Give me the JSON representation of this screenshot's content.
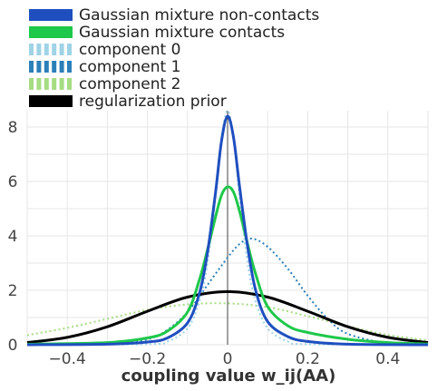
{
  "chart_data": {
    "type": "line",
    "title": "",
    "xlabel": "coupling value w_ij(AA)",
    "ylabel": "",
    "xlim": [
      -0.5,
      0.5
    ],
    "ylim": [
      0,
      8.6
    ],
    "x_ticks": [
      -0.4,
      -0.2,
      0,
      0.2,
      0.4
    ],
    "x_tick_labels": [
      "−0.4",
      "−0.2",
      "0",
      "0.2",
      "0.4"
    ],
    "y_ticks": [
      0,
      2,
      4,
      6,
      8
    ],
    "y_tick_labels": [
      "0",
      "2",
      "4",
      "6",
      "8"
    ],
    "grid": true,
    "legend_position": "top-left",
    "series": [
      {
        "name": "Gaussian mixture non-contacts",
        "color": "#1f4fbf",
        "style": "solid",
        "peak": 8.4,
        "x": [
          -0.5,
          -0.3,
          -0.2,
          -0.15,
          -0.1,
          -0.07,
          -0.05,
          -0.03,
          -0.015,
          0,
          0.015,
          0.03,
          0.05,
          0.07,
          0.1,
          0.15,
          0.2,
          0.3,
          0.5
        ],
        "values": [
          0.0,
          0.02,
          0.1,
          0.25,
          0.8,
          1.9,
          3.4,
          5.6,
          7.5,
          8.4,
          7.6,
          5.8,
          3.6,
          2.0,
          0.85,
          0.3,
          0.12,
          0.02,
          0.0
        ]
      },
      {
        "name": "Gaussian mixture contacts",
        "color": "#1ec84a",
        "style": "solid",
        "peak": 5.8,
        "x": [
          -0.5,
          -0.3,
          -0.2,
          -0.15,
          -0.1,
          -0.07,
          -0.05,
          -0.03,
          -0.015,
          0,
          0.015,
          0.03,
          0.05,
          0.07,
          0.1,
          0.15,
          0.2,
          0.3,
          0.4,
          0.5
        ],
        "values": [
          0.02,
          0.08,
          0.25,
          0.5,
          1.2,
          2.4,
          3.5,
          4.7,
          5.5,
          5.8,
          5.6,
          4.9,
          3.7,
          2.6,
          1.4,
          0.7,
          0.45,
          0.2,
          0.08,
          0.03
        ]
      },
      {
        "name": "component 0",
        "color": "#9fd3e6",
        "style": "dotted",
        "peak": 8.6,
        "x": [
          -0.5,
          -0.2,
          -0.15,
          -0.1,
          -0.07,
          -0.05,
          -0.03,
          -0.015,
          0,
          0.015,
          0.03,
          0.05,
          0.07,
          0.1,
          0.15,
          0.2,
          0.5
        ],
        "values": [
          0.0,
          0.02,
          0.12,
          0.6,
          1.6,
          3.0,
          5.4,
          7.6,
          8.6,
          7.6,
          5.4,
          3.0,
          1.6,
          0.6,
          0.12,
          0.02,
          0.0
        ]
      },
      {
        "name": "component 1",
        "color": "#2c7fb8",
        "style": "dotted",
        "peak": 3.9,
        "x": [
          -0.5,
          -0.3,
          -0.2,
          -0.15,
          -0.1,
          -0.05,
          0,
          0.03,
          0.06,
          0.1,
          0.15,
          0.2,
          0.25,
          0.3,
          0.4,
          0.5
        ],
        "values": [
          0.0,
          0.02,
          0.2,
          0.55,
          1.2,
          2.2,
          3.2,
          3.7,
          3.9,
          3.6,
          2.8,
          1.8,
          0.95,
          0.4,
          0.05,
          0.0
        ]
      },
      {
        "name": "component 2",
        "color": "#a6dc82",
        "style": "dotted",
        "peak": 1.5,
        "x": [
          -0.5,
          -0.4,
          -0.3,
          -0.2,
          -0.1,
          0,
          0.1,
          0.2,
          0.3,
          0.4,
          0.5
        ],
        "values": [
          0.35,
          0.62,
          0.95,
          1.28,
          1.48,
          1.52,
          1.38,
          1.05,
          0.68,
          0.36,
          0.16
        ]
      },
      {
        "name": "regularization prior",
        "color": "#000000",
        "style": "solid",
        "peak": 1.95,
        "x": [
          -0.5,
          -0.4,
          -0.3,
          -0.2,
          -0.1,
          0,
          0.1,
          0.2,
          0.3,
          0.4,
          0.5
        ],
        "values": [
          0.08,
          0.27,
          0.66,
          1.23,
          1.75,
          1.95,
          1.75,
          1.23,
          0.66,
          0.27,
          0.08
        ]
      }
    ]
  }
}
